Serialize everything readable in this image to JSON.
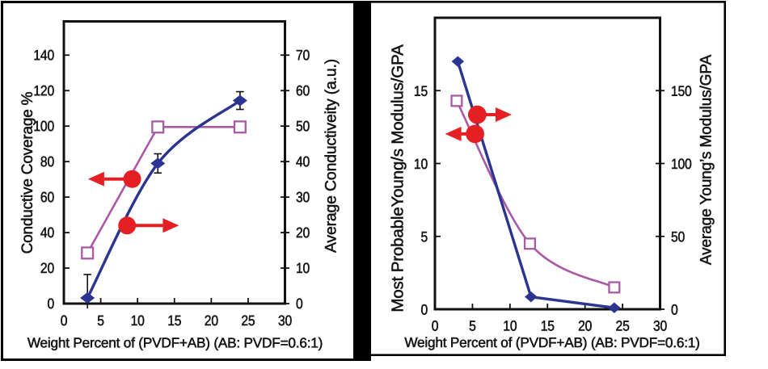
{
  "figure": {
    "background": "#ffffff",
    "frame_color": "#000000"
  },
  "colors": {
    "blue": "#2b3590",
    "pink": "#aa59a6",
    "red": "#e42025",
    "black": "#111111"
  },
  "chart_data": [
    {
      "type": "line",
      "title": "",
      "xlabel": "Weight Percent of (PVDF+AB) (AB: PVDF=0.6:1)",
      "x_axis": {
        "ticks": [
          "0",
          "5",
          "10",
          "15",
          "20",
          "25",
          "30"
        ],
        "tick_values": [
          0,
          5,
          10,
          15,
          20,
          25,
          30
        ],
        "range": [
          0,
          30
        ]
      },
      "left_axis": {
        "label": "Conductive Coverage %",
        "ticks": [
          "0",
          "20",
          "40",
          "60",
          "80",
          "100",
          "120",
          "140"
        ],
        "tick_values": [
          0,
          20,
          40,
          60,
          80,
          100,
          120,
          140
        ],
        "range": [
          0,
          159
        ]
      },
      "right_axis": {
        "label": "Average Conductiveity (a.u.)",
        "ticks": [
          "0",
          "10",
          "20",
          "30",
          "40",
          "50",
          "60",
          "70"
        ],
        "tick_values": [
          0,
          10,
          20,
          30,
          40,
          50,
          60,
          70
        ],
        "range": [
          0,
          79.5
        ]
      },
      "grid": false,
      "legend": false,
      "series": [
        {
          "name": "Conductive Coverage %",
          "axis": "left",
          "color_key": "pink",
          "marker": "open-square",
          "smooth": false,
          "x": [
            3.2,
            12.75,
            23.9
          ],
          "y": [
            28.5,
            99.5,
            99.5
          ]
        },
        {
          "name": "Average Conductiveity (a.u.)",
          "axis": "right",
          "color_key": "blue",
          "marker": "diamond",
          "smooth": true,
          "x": [
            3.2,
            12.75,
            23.9
          ],
          "y": [
            1.6,
            39.5,
            57.2
          ],
          "yerr": [
            6.6,
            2.7,
            2.5
          ]
        }
      ],
      "annotations": [
        {
          "shape": "circle-arrow",
          "direction": "left",
          "color_key": "red",
          "axis": "left",
          "x": 9.27,
          "y": 70.2,
          "arrow_tip_x": 3.28
        },
        {
          "shape": "circle-arrow",
          "direction": "right",
          "color_key": "red",
          "axis": "left",
          "x": 8.58,
          "y": 44.0,
          "arrow_tip_x": 15.62
        }
      ]
    },
    {
      "type": "line",
      "title": "",
      "xlabel": "Weight Percent of (PVDF+AB) (AB: PVDF=0.6:1)",
      "x_axis": {
        "ticks": [
          "0",
          "5",
          "10",
          "15",
          "20",
          "25",
          "30"
        ],
        "tick_values": [
          0,
          5,
          10,
          15,
          20,
          25,
          30
        ],
        "range": [
          0,
          30
        ]
      },
      "left_axis": {
        "label": "Most ProbableYoung/s Modulus/GPA",
        "ticks": [
          "0",
          "5",
          "10",
          "15"
        ],
        "tick_values": [
          0,
          5,
          10,
          15
        ],
        "range": [
          0,
          20
        ]
      },
      "right_axis": {
        "label": "Average  Young’s Modulus/GPA",
        "ticks": [
          "0",
          "50",
          "100",
          "150"
        ],
        "tick_values": [
          0,
          50,
          100,
          150
        ],
        "range": [
          0,
          200
        ]
      },
      "grid": false,
      "legend": false,
      "series": [
        {
          "name": "Most Probable Young's Modulus",
          "axis": "left",
          "color_key": "pink",
          "marker": "open-square",
          "smooth": true,
          "x": [
            2.9,
            12.65,
            23.9
          ],
          "y": [
            14.3,
            4.5,
            1.5
          ]
        },
        {
          "name": "Average Young's Modulus",
          "axis": "right",
          "color_key": "blue",
          "marker": "diamond",
          "smooth": false,
          "x": [
            3.05,
            12.8,
            23.9
          ],
          "y": [
            170,
            8.5,
            1
          ]
        }
      ],
      "annotations": [
        {
          "shape": "circle-arrow",
          "direction": "right",
          "color_key": "red",
          "axis": "left",
          "x": 5.64,
          "y": 13.35,
          "arrow_tip_x": 10.23
        },
        {
          "shape": "circle-arrow",
          "direction": "left",
          "color_key": "red",
          "axis": "left",
          "x": 5.34,
          "y": 12.03,
          "arrow_tip_x": 1.36
        }
      ]
    }
  ]
}
